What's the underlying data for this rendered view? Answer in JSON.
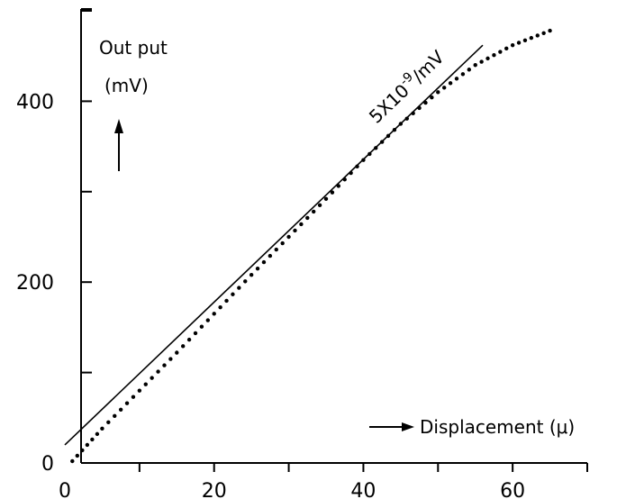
{
  "chart_data": {
    "type": "line",
    "title": "",
    "xlabel": "Displacement (μ)",
    "ylabel": "Out put\n(mV)",
    "xlim": [
      0,
      70
    ],
    "ylim": [
      0,
      500
    ],
    "x_ticks": [
      0,
      20,
      40,
      60
    ],
    "y_ticks": [
      0,
      200,
      400
    ],
    "grid": false,
    "legend": "none",
    "annotations": [
      {
        "text": "5X10",
        "superscript": "-9",
        "suffix": "/mV",
        "series": "reference"
      }
    ],
    "series": [
      {
        "id": "reference",
        "style": "solid",
        "x": [
          0,
          56
        ],
        "y": [
          20,
          462
        ]
      },
      {
        "id": "measured",
        "style": "dotted",
        "x": [
          1,
          5,
          10,
          15,
          20,
          25,
          30,
          35,
          40,
          45,
          50,
          55,
          60,
          65
        ],
        "y": [
          2,
          38,
          80,
          122,
          165,
          208,
          250,
          292,
          335,
          375,
          410,
          440,
          462,
          478
        ]
      }
    ]
  }
}
